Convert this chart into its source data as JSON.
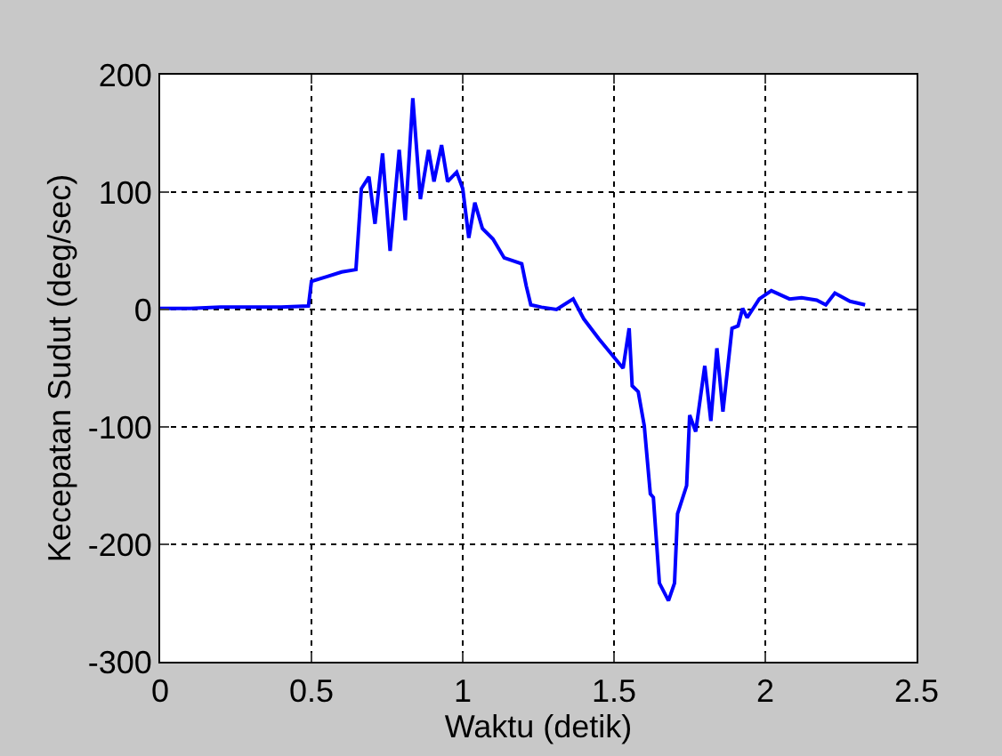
{
  "chart_data": {
    "type": "line",
    "xlabel": "Waktu (detik)",
    "ylabel": "Kecepatan Sudut (deg/sec)",
    "x": [
      0,
      0.1,
      0.2,
      0.3,
      0.4,
      0.49,
      0.5,
      0.55,
      0.6,
      0.647,
      0.665,
      0.69,
      0.71,
      0.735,
      0.76,
      0.79,
      0.81,
      0.835,
      0.86,
      0.887,
      0.905,
      0.93,
      0.95,
      0.98,
      1.0,
      1.02,
      1.04,
      1.065,
      1.1,
      1.137,
      1.195,
      1.21,
      1.225,
      1.26,
      1.31,
      1.365,
      1.4,
      1.45,
      1.53,
      1.55,
      1.56,
      1.58,
      1.6,
      1.62,
      1.63,
      1.65,
      1.68,
      1.7,
      1.71,
      1.74,
      1.75,
      1.77,
      1.8,
      1.82,
      1.84,
      1.86,
      1.89,
      1.91,
      1.925,
      1.94,
      1.98,
      2.02,
      2.08,
      2.12,
      2.17,
      2.2,
      2.23,
      2.28,
      2.33
    ],
    "values": [
      1,
      1,
      2,
      2,
      2,
      3,
      24,
      28,
      32,
      34,
      103,
      113,
      73,
      133,
      50,
      136,
      76,
      180,
      94,
      136,
      109,
      140,
      109,
      117,
      103,
      61,
      91,
      69,
      60,
      44,
      39,
      20,
      4,
      2,
      0,
      9,
      -8,
      -25,
      -50,
      -16,
      -65,
      -70,
      -99,
      -157,
      -160,
      -233,
      -248,
      -233,
      -174,
      -150,
      -90,
      -104,
      -48,
      -95,
      -33,
      -87,
      -16,
      -14,
      1,
      -7,
      9,
      16,
      9,
      10,
      8,
      4,
      14,
      7,
      4
    ],
    "color": "#0000ff",
    "xlim": [
      0,
      2.5
    ],
    "ylim": [
      -300,
      200
    ],
    "xticks": [
      0,
      0.5,
      1,
      1.5,
      2,
      2.5
    ],
    "yticks": [
      -300,
      -200,
      -100,
      0,
      100,
      200
    ],
    "grid": true,
    "marker": "none",
    "line_style": "solid"
  }
}
